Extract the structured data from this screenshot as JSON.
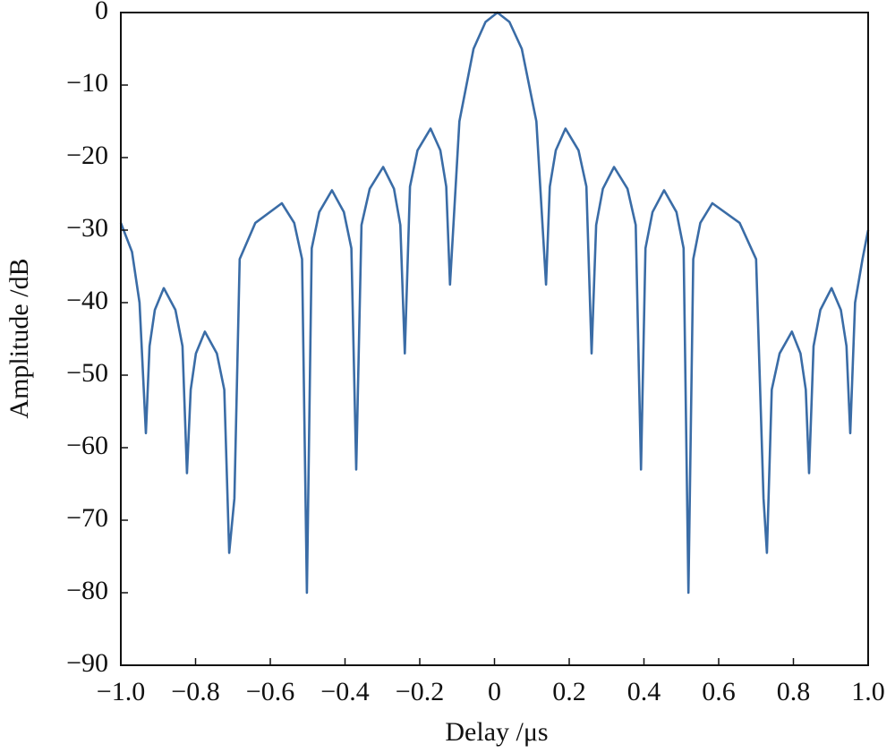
{
  "chart_data": {
    "type": "line",
    "xlabel": "Delay /μs",
    "ylabel": "Amplitude /dB",
    "x": [
      -1.0,
      -0.97,
      -0.95,
      -0.933,
      -0.923,
      -0.909,
      -0.885,
      -0.854,
      -0.835,
      -0.823,
      -0.813,
      -0.799,
      -0.775,
      -0.743,
      -0.723,
      -0.71,
      -0.696,
      -0.682,
      -0.64,
      -0.569,
      -0.536,
      -0.515,
      -0.502,
      -0.489,
      -0.469,
      -0.435,
      -0.403,
      -0.383,
      -0.37,
      -0.356,
      -0.334,
      -0.298,
      -0.269,
      -0.252,
      -0.24,
      -0.226,
      -0.206,
      -0.171,
      -0.145,
      -0.129,
      -0.119,
      -0.094,
      -0.056,
      -0.024,
      0.008,
      0.04,
      0.073,
      0.112,
      0.138,
      0.148,
      0.164,
      0.19,
      0.225,
      0.246,
      0.26,
      0.272,
      0.29,
      0.32,
      0.356,
      0.378,
      0.392,
      0.404,
      0.423,
      0.454,
      0.487,
      0.506,
      0.519,
      0.532,
      0.551,
      0.583,
      0.656,
      0.7,
      0.72,
      0.729,
      0.742,
      0.763,
      0.796,
      0.819,
      0.833,
      0.842,
      0.854,
      0.872,
      0.902,
      0.927,
      0.942,
      0.952,
      0.965,
      0.985,
      1.0
    ],
    "series": [
      {
        "color": "#3a6ca6",
        "values": [
          -29,
          -33,
          -40,
          -58,
          -46,
          -41,
          -38,
          -41,
          -46,
          -63.5,
          -52,
          -47,
          -44,
          -47,
          -52,
          -74.5,
          -67,
          -34,
          -29,
          -26.3,
          -29,
          -34,
          -80,
          -32.5,
          -27.5,
          -24.5,
          -27.5,
          -32.5,
          -63,
          -29.3,
          -24.3,
          -21.3,
          -24.3,
          -29.3,
          -47,
          -24,
          -19,
          -16,
          -19,
          -24,
          -37.5,
          -15,
          -5,
          -1.3,
          0,
          -1.3,
          -5,
          -15,
          -37.5,
          -24,
          -19,
          -16,
          -19,
          -24,
          -47,
          -29.3,
          -24.3,
          -21.3,
          -24.3,
          -29.3,
          -63,
          -32.5,
          -27.5,
          -24.5,
          -27.5,
          -32.5,
          -80,
          -34,
          -29,
          -26.3,
          -29,
          -34,
          -67,
          -74.5,
          -52,
          -47,
          -44,
          -47,
          -52,
          -63.5,
          -46,
          -41,
          -38,
          -41,
          -46,
          -58,
          -40,
          -34,
          -30
        ]
      }
    ],
    "xlim": [
      -1.0,
      1.0
    ],
    "xticks": [
      {
        "value": -1.0,
        "label": "−1.0"
      },
      {
        "value": -0.8,
        "label": "−0.8"
      },
      {
        "value": -0.6,
        "label": "−0.6"
      },
      {
        "value": -0.4,
        "label": "−0.4"
      },
      {
        "value": -0.2,
        "label": "−0.2"
      },
      0,
      {
        "value": 0.2,
        "label": "0.2"
      },
      {
        "value": 0.4,
        "label": "0.4"
      },
      {
        "value": 0.6,
        "label": "0.6"
      },
      {
        "value": 0.8,
        "label": "0.8"
      },
      {
        "value": 1.0,
        "label": "1.0"
      }
    ],
    "ylim": [
      -90,
      0
    ],
    "yticks": [
      {
        "value": -90,
        "label": "−90"
      },
      {
        "value": -80,
        "label": "−80"
      },
      {
        "value": -70,
        "label": "−70"
      },
      {
        "value": -60,
        "label": "−60"
      },
      {
        "value": -50,
        "label": "−50"
      },
      {
        "value": -40,
        "label": "−40"
      },
      {
        "value": -30,
        "label": "−30"
      },
      {
        "value": -20,
        "label": "−20"
      },
      {
        "value": -10,
        "label": "−10"
      },
      0
    ],
    "grid": false
  }
}
